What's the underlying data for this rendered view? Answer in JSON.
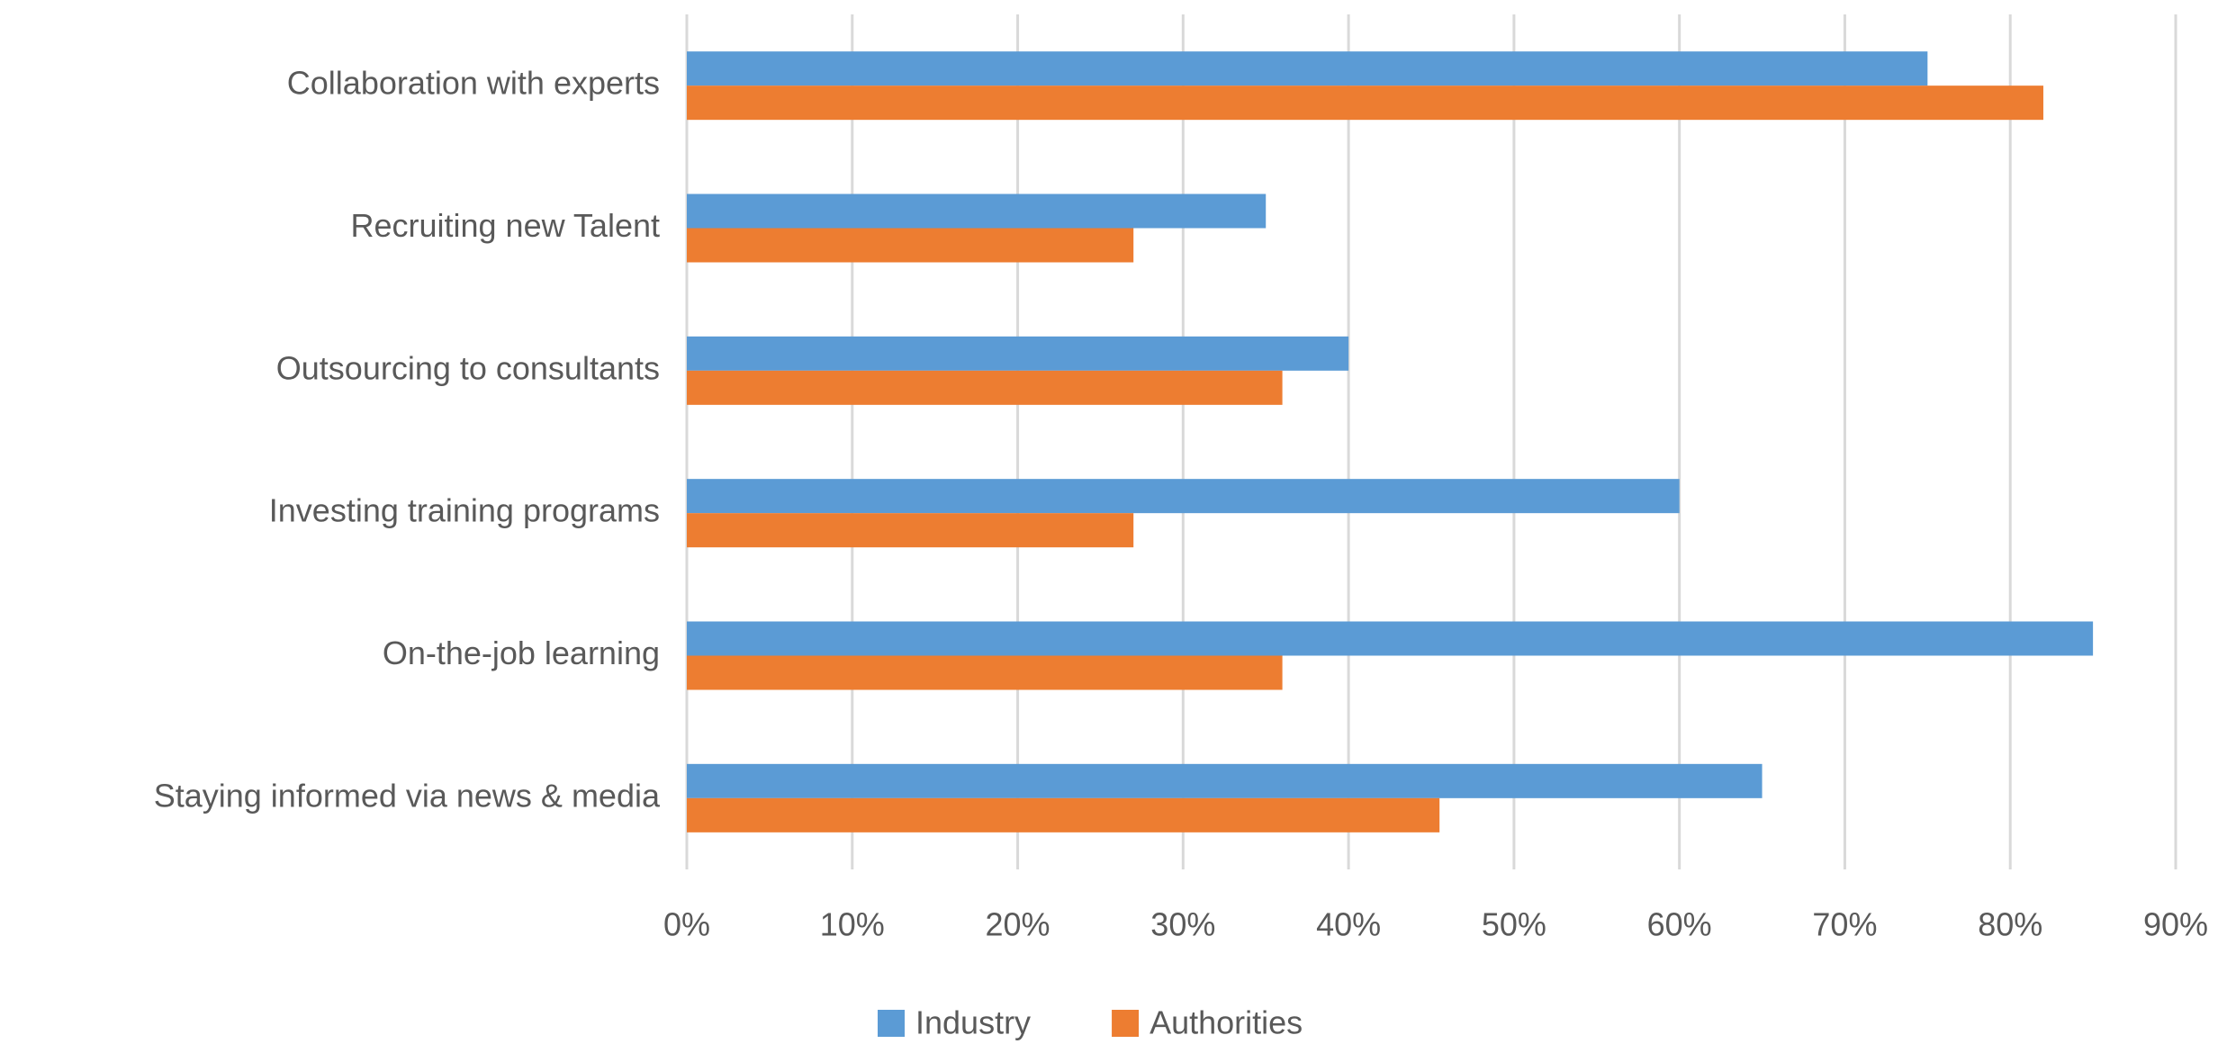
{
  "chart_data": {
    "type": "hbar",
    "categories": [
      "Collaboration with experts",
      "Recruiting new Talent",
      "Outsourcing to consultants",
      "Investing training programs",
      "On-the-job learning",
      "Staying informed via news & media"
    ],
    "series": [
      {
        "name": "Industry",
        "color": "#5b9bd5",
        "values": [
          75,
          35,
          40,
          60,
          85,
          65
        ]
      },
      {
        "name": "Authorities",
        "color": "#ed7d31",
        "values": [
          82,
          27,
          36,
          27,
          36,
          45.5
        ]
      }
    ],
    "xlim": [
      0,
      90
    ],
    "xticks": [
      {
        "value": 0,
        "label": "0%"
      },
      {
        "value": 10,
        "label": "10%"
      },
      {
        "value": 20,
        "label": "20%"
      },
      {
        "value": 30,
        "label": "30%"
      },
      {
        "value": 40,
        "label": "40%"
      },
      {
        "value": 50,
        "label": "50%"
      },
      {
        "value": 60,
        "label": "60%"
      },
      {
        "value": 70,
        "label": "70%"
      },
      {
        "value": 80,
        "label": "80%"
      },
      {
        "value": 90,
        "label": "90%"
      }
    ],
    "grid": true,
    "legend": "bottom"
  }
}
